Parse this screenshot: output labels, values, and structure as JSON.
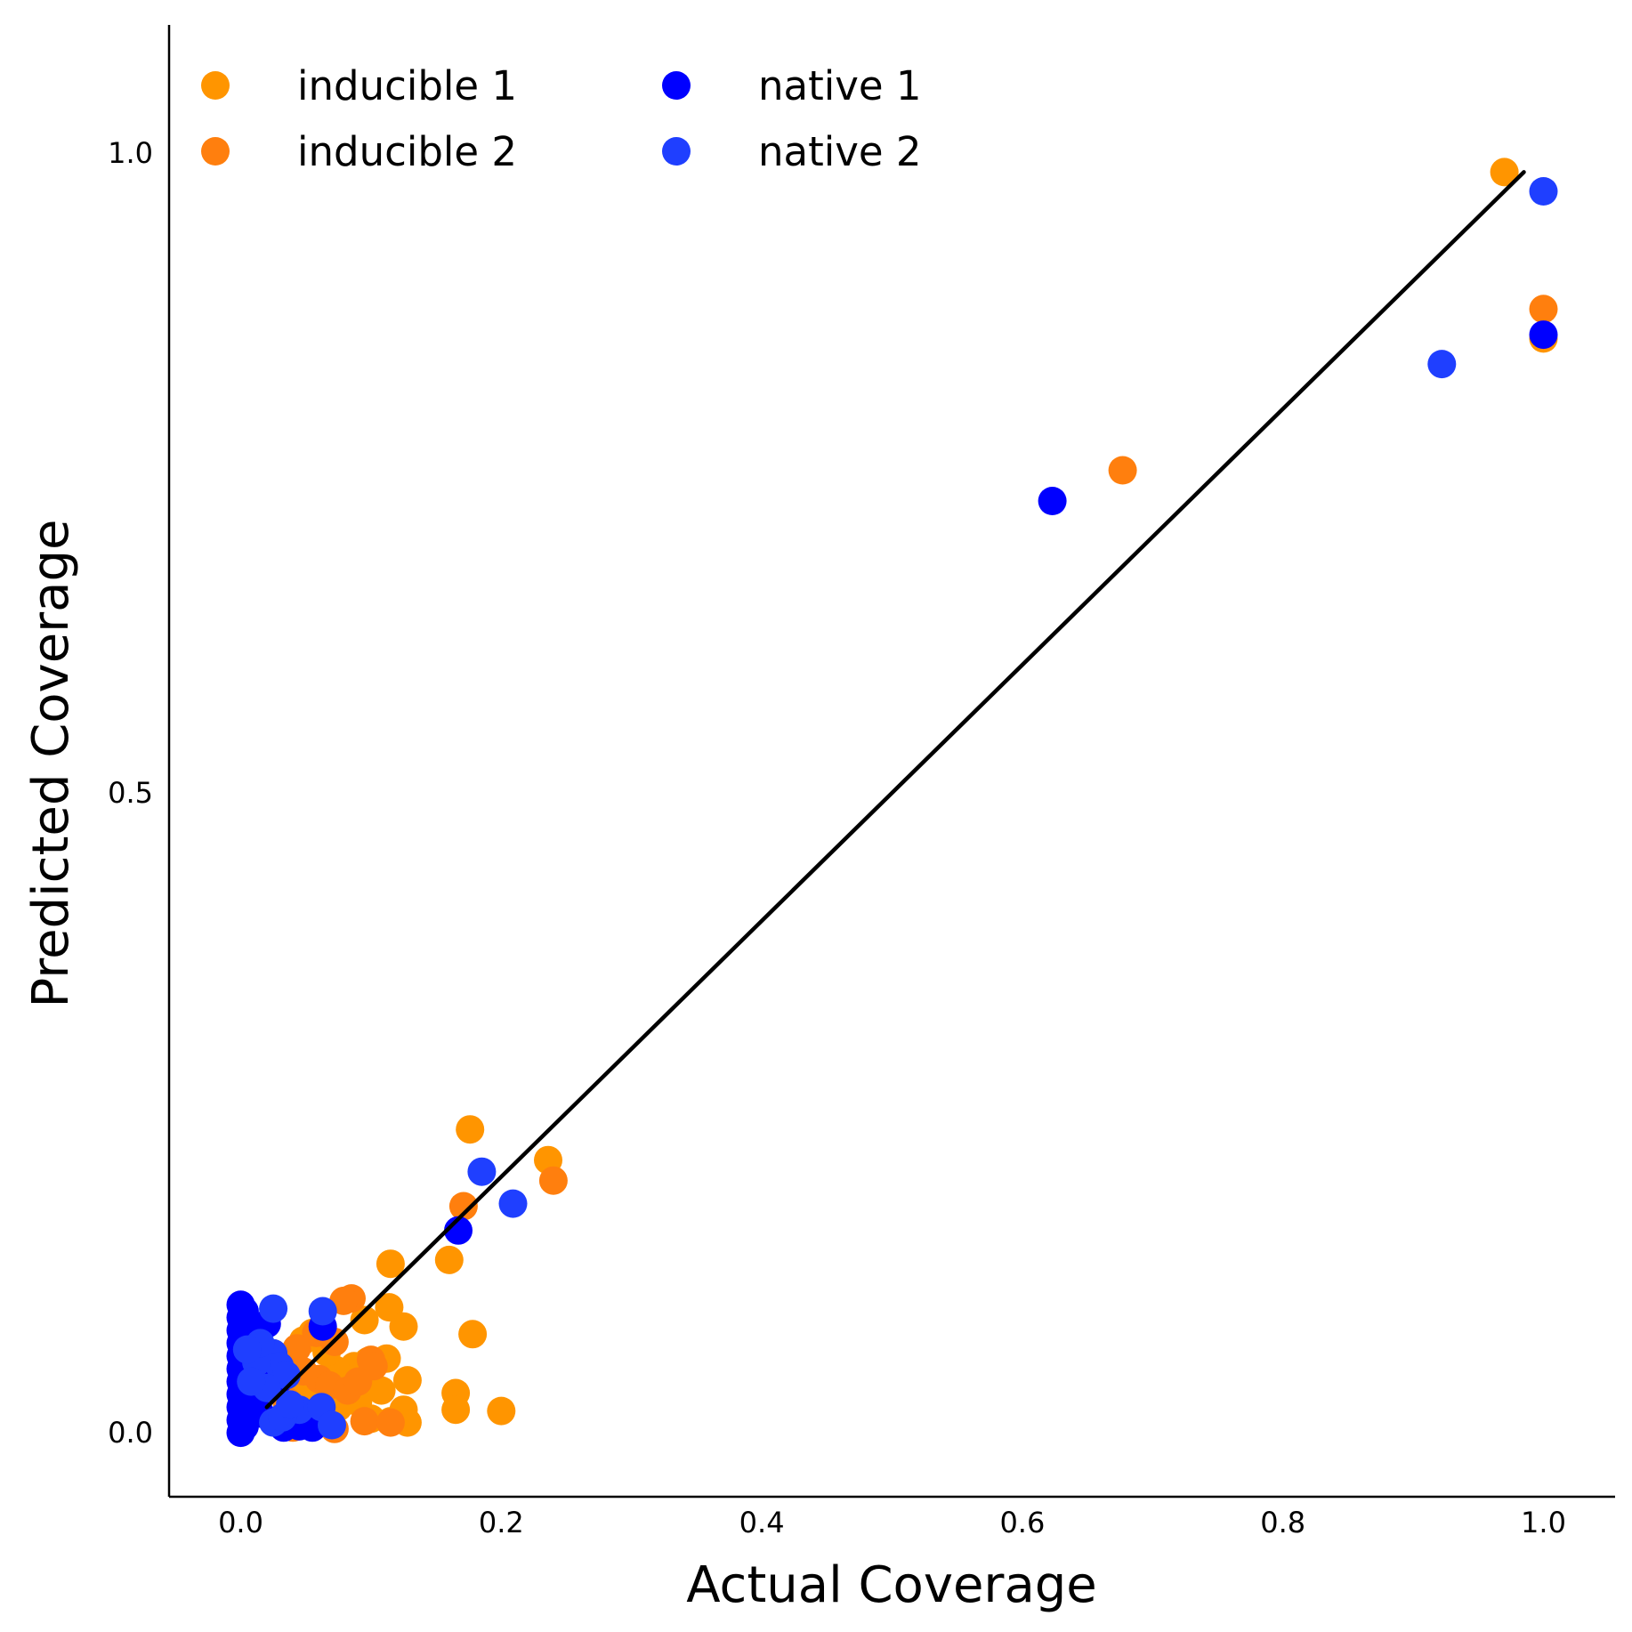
{
  "chart_data": {
    "type": "scatter",
    "title": "",
    "xlabel": "Actual Coverage",
    "ylabel": "Predicted Coverage",
    "xlim": [
      -0.055,
      1.055
    ],
    "ylim": [
      -0.05,
      1.1
    ],
    "xticks": [
      "0.0",
      "0.2",
      "0.4",
      "0.6",
      "0.8",
      "1.0"
    ],
    "yticks": [
      "0.0",
      "0.5",
      "1.0"
    ],
    "grid": false,
    "legend": {
      "placement": "top-left",
      "columns": 2
    },
    "reference_line": {
      "color": "#000000",
      "points": [
        [
          0.02,
          0.02
        ],
        [
          0.985,
          0.985
        ]
      ]
    },
    "series": [
      {
        "name": "inducible 1",
        "color": "#ff9500",
        "points": [
          [
            0.97,
            0.985
          ],
          [
            1.0,
            0.855
          ],
          [
            0.176,
            0.237
          ],
          [
            0.236,
            0.213
          ],
          [
            0.115,
            0.132
          ],
          [
            0.16,
            0.135
          ],
          [
            0.114,
            0.098
          ],
          [
            0.095,
            0.088
          ],
          [
            0.125,
            0.083
          ],
          [
            0.178,
            0.077
          ],
          [
            0.112,
            0.058
          ],
          [
            0.098,
            0.056
          ],
          [
            0.128,
            0.041
          ],
          [
            0.165,
            0.031
          ],
          [
            0.165,
            0.018
          ],
          [
            0.2,
            0.017
          ],
          [
            0.125,
            0.018
          ],
          [
            0.108,
            0.033
          ],
          [
            0.087,
            0.052
          ],
          [
            0.073,
            0.049
          ],
          [
            0.066,
            0.063
          ],
          [
            0.055,
            0.078
          ],
          [
            0.048,
            0.072
          ],
          [
            0.04,
            0.054
          ],
          [
            0.032,
            0.043
          ],
          [
            0.045,
            0.028
          ],
          [
            0.052,
            0.018
          ],
          [
            0.06,
            0.012
          ],
          [
            0.075,
            0.02
          ],
          [
            0.09,
            0.024
          ],
          [
            0.1,
            0.011
          ],
          [
            0.115,
            0.009
          ],
          [
            0.128,
            0.008
          ],
          [
            0.03,
            0.01
          ],
          [
            0.025,
            0.062
          ],
          [
            0.058,
            0.04
          ],
          [
            0.07,
            0.032
          ]
        ]
      },
      {
        "name": "inducible 2",
        "color": "#ff7f0e",
        "points": [
          [
            0.677,
            0.752
          ],
          [
            1.0,
            0.878
          ],
          [
            0.24,
            0.197
          ],
          [
            0.171,
            0.177
          ],
          [
            0.085,
            0.105
          ],
          [
            0.079,
            0.103
          ],
          [
            0.072,
            0.071
          ],
          [
            0.058,
            0.078
          ],
          [
            0.043,
            0.066
          ],
          [
            0.1,
            0.057
          ],
          [
            0.102,
            0.052
          ],
          [
            0.06,
            0.042
          ],
          [
            0.068,
            0.037
          ],
          [
            0.082,
            0.033
          ],
          [
            0.095,
            0.009
          ],
          [
            0.115,
            0.008
          ],
          [
            0.072,
            0.003
          ],
          [
            0.052,
            0.008
          ],
          [
            0.035,
            0.025
          ],
          [
            0.048,
            0.048
          ],
          [
            0.09,
            0.04
          ],
          [
            0.04,
            0.004
          ]
        ]
      },
      {
        "name": "native 1",
        "color": "#0000ff",
        "points": [
          [
            0.623,
            0.728
          ],
          [
            1.0,
            0.858
          ],
          [
            0.167,
            0.158
          ],
          [
            0.063,
            0.083
          ],
          [
            0.02,
            0.085
          ],
          [
            0.0,
            0.0
          ],
          [
            0.0,
            0.01
          ],
          [
            0.0,
            0.02
          ],
          [
            0.0,
            0.03
          ],
          [
            0.0,
            0.04
          ],
          [
            0.0,
            0.05
          ],
          [
            0.0,
            0.06
          ],
          [
            0.0,
            0.07
          ],
          [
            0.0,
            0.08
          ],
          [
            0.0,
            0.09
          ],
          [
            0.0,
            0.1
          ],
          [
            0.003,
            0.005
          ],
          [
            0.003,
            0.095
          ],
          [
            0.01,
            0.03
          ],
          [
            0.015,
            0.015
          ],
          [
            0.03,
            0.042
          ],
          [
            0.045,
            0.005
          ],
          [
            0.055,
            0.004
          ],
          [
            0.06,
            0.012
          ],
          [
            0.033,
            0.004
          ],
          [
            0.02,
            0.05
          ]
        ]
      },
      {
        "name": "native 2",
        "color": "#1f3fff",
        "points": [
          [
            1.0,
            0.97
          ],
          [
            0.922,
            0.835
          ],
          [
            0.185,
            0.204
          ],
          [
            0.209,
            0.179
          ],
          [
            0.025,
            0.097
          ],
          [
            0.063,
            0.095
          ],
          [
            0.025,
            0.062
          ],
          [
            0.03,
            0.052
          ],
          [
            0.035,
            0.045
          ],
          [
            0.02,
            0.035
          ],
          [
            0.045,
            0.018
          ],
          [
            0.062,
            0.02
          ],
          [
            0.07,
            0.006
          ],
          [
            0.025,
            0.008
          ],
          [
            0.032,
            0.012
          ],
          [
            0.012,
            0.055
          ],
          [
            0.015,
            0.07
          ],
          [
            0.008,
            0.04
          ],
          [
            0.005,
            0.065
          ],
          [
            0.038,
            0.022
          ]
        ]
      }
    ]
  }
}
